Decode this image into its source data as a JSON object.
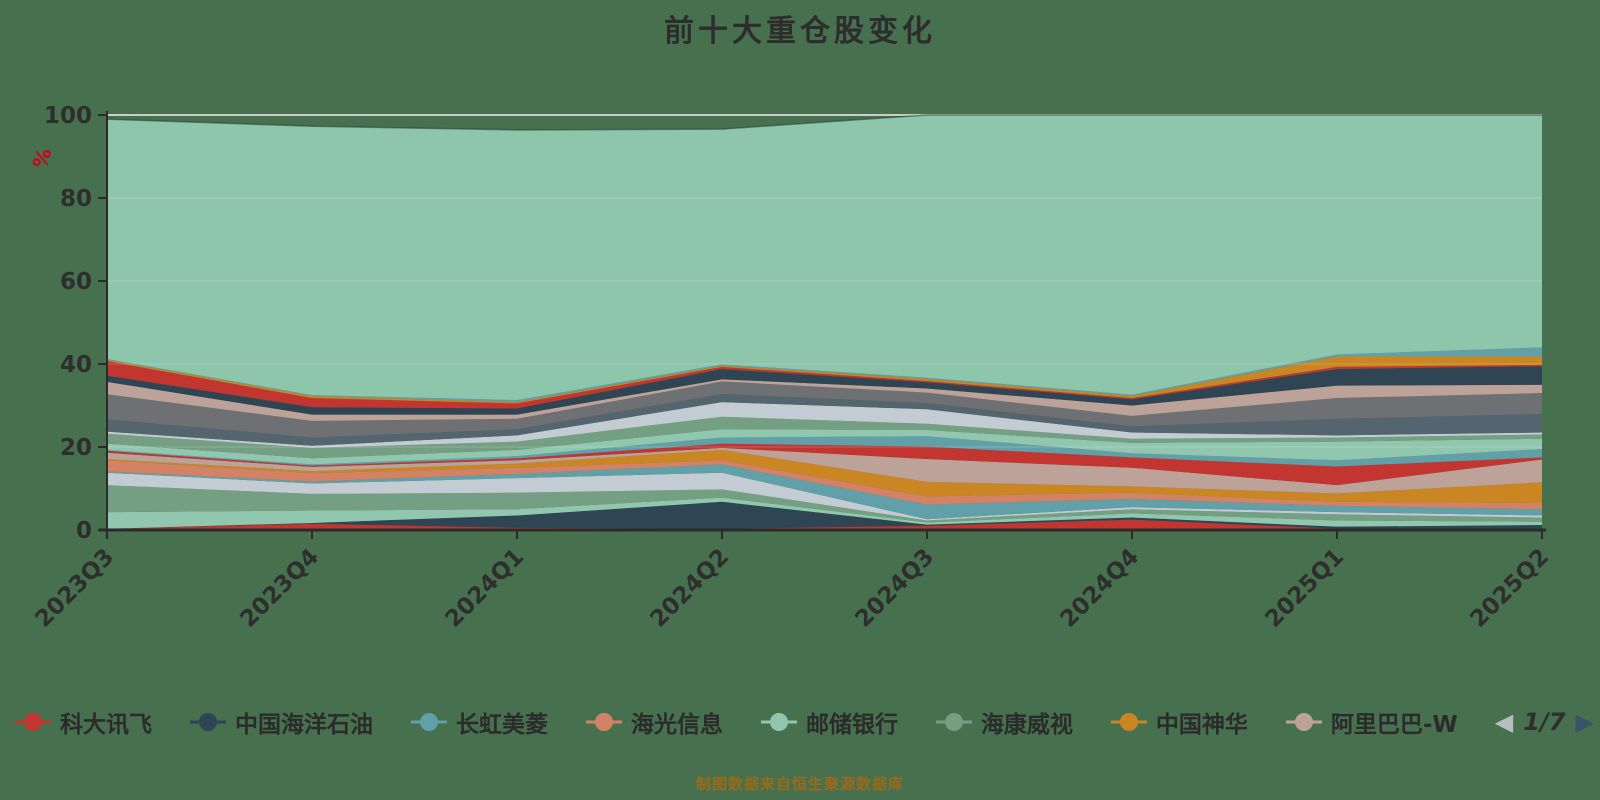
{
  "title": "前十大重仓股变化",
  "caption": "制图数据来自恒生聚源数据库",
  "y_axis": {
    "unit": "%",
    "labels": [
      0,
      20,
      40,
      60,
      80,
      100
    ]
  },
  "legend": {
    "pager": {
      "text": "1/7",
      "prev_icon": "left-triangle",
      "next_icon": "right-triangle"
    },
    "items": [
      {
        "label": "科大讯飞",
        "color": "#c23531"
      },
      {
        "label": "中国海洋石油",
        "color": "#2f4554"
      },
      {
        "label": "长虹美菱",
        "color": "#61a0a8"
      },
      {
        "label": "海光信息",
        "color": "#d48265"
      },
      {
        "label": "邮储银行",
        "color": "#91c7ae"
      },
      {
        "label": "海康威视",
        "color": "#749f83"
      },
      {
        "label": "中国神华",
        "color": "#ca8622"
      },
      {
        "label": "阿里巴巴-W",
        "color": "#bda29a"
      }
    ]
  },
  "colors": {
    "background": "#47704F",
    "axis": "#2b2b2b",
    "axis_label": "#2e2e2e",
    "gridline_100": "#c9cdc9",
    "unit_label": "#d0021b",
    "caption": "#9a6a1b",
    "top_area": "#8ec6ac"
  },
  "chart_data": {
    "type": "area",
    "stacked": true,
    "title": "前十大重仓股变化",
    "x": [
      "2023Q3",
      "2023Q4",
      "2024Q1",
      "2024Q2",
      "2024Q3",
      "2024Q4",
      "2025Q1",
      "2025Q2"
    ],
    "ylim": [
      0,
      100
    ],
    "ylabel": "%",
    "grid": "horizontal-line-at-100-plus-faint-20-40-60-80",
    "legend_position": "bottom",
    "series": [
      {
        "name": "科大讯飞",
        "color": "#c23531",
        "values": [
          0.3,
          1.5,
          0.5,
          0.3,
          1.0,
          2.5,
          0.3,
          0.2
        ]
      },
      {
        "name": "中国海洋石油",
        "color": "#2f4554",
        "values": [
          0.0,
          0.2,
          3.0,
          6.5,
          0.3,
          0.5,
          0.5,
          1.0
        ]
      },
      {
        "name": "邮储银行",
        "color": "#91c7ae",
        "values": [
          4.0,
          3.0,
          1.5,
          1.0,
          0.5,
          1.0,
          1.5,
          0.8
        ]
      },
      {
        "name": "海康威视",
        "color": "#749f83",
        "values": [
          6.5,
          4.0,
          4.0,
          2.0,
          0.5,
          1.0,
          1.5,
          1.0
        ]
      },
      {
        "name": "",
        "color": "#c4ccd3",
        "values": [
          3.0,
          2.5,
          3.5,
          4.0,
          0.3,
          0.5,
          0.5,
          0.5
        ]
      },
      {
        "name": "长虹美菱",
        "color": "#61a0a8",
        "values": [
          0.3,
          0.5,
          1.0,
          2.0,
          3.5,
          2.0,
          1.5,
          1.5
        ]
      },
      {
        "name": "海光信息",
        "color": "#d48265",
        "values": [
          2.7,
          2.0,
          1.5,
          1.0,
          2.0,
          1.5,
          1.0,
          1.5
        ]
      },
      {
        "name": "中国神华",
        "color": "#ca8622",
        "values": [
          0.3,
          0.5,
          1.0,
          2.5,
          3.5,
          1.5,
          2.0,
          5.0
        ]
      },
      {
        "name": "阿里巴巴-W",
        "color": "#bda29a",
        "values": [
          1.5,
          1.0,
          0.8,
          0.5,
          5.5,
          4.5,
          2.0,
          5.5
        ]
      },
      {
        "name": "",
        "color": "#c23531",
        "values": [
          0.5,
          0.3,
          0.5,
          1.0,
          3.0,
          2.5,
          4.5,
          0.5
        ]
      },
      {
        "name": "",
        "color": "#61a0a8",
        "values": [
          0.2,
          0.3,
          0.5,
          1.5,
          2.5,
          1.0,
          1.5,
          2.0
        ]
      },
      {
        "name": "",
        "color": "#91c7ae",
        "values": [
          1.5,
          1.5,
          1.5,
          2.0,
          1.5,
          2.5,
          4.5,
          2.5
        ]
      },
      {
        "name": "",
        "color": "#749f83",
        "values": [
          2.4,
          2.5,
          2.0,
          3.0,
          1.5,
          1.0,
          1.0,
          1.0
        ]
      },
      {
        "name": "",
        "color": "#c4ccd3",
        "values": [
          0.5,
          0.5,
          1.5,
          3.5,
          3.5,
          1.5,
          0.5,
          0.5
        ]
      },
      {
        "name": "",
        "color": "#546570",
        "values": [
          3.0,
          2.0,
          1.5,
          2.0,
          1.5,
          1.5,
          4.0,
          4.5
        ]
      },
      {
        "name": "",
        "color": "#6e7074",
        "values": [
          6.0,
          4.0,
          2.5,
          3.0,
          2.5,
          2.5,
          5.0,
          5.0
        ]
      },
      {
        "name": "",
        "color": "#bda29a",
        "values": [
          3.0,
          1.5,
          1.0,
          0.5,
          1.0,
          2.5,
          3.0,
          2.0
        ]
      },
      {
        "name": "",
        "color": "#2f4554",
        "values": [
          1.5,
          1.8,
          1.5,
          2.5,
          1.5,
          1.5,
          4.0,
          4.5
        ]
      },
      {
        "name": "",
        "color": "#c23531",
        "values": [
          3.5,
          2.2,
          1.2,
          0.5,
          0.3,
          0.3,
          0.5,
          0.3
        ]
      },
      {
        "name": "",
        "color": "#ca8622",
        "values": [
          0.3,
          0.5,
          0.3,
          0.3,
          0.5,
          0.5,
          2.5,
          2.0
        ]
      },
      {
        "name": "",
        "color": "#61a0a8",
        "values": [
          0.2,
          0.2,
          0.5,
          0.3,
          0.3,
          0.3,
          0.5,
          2.2
        ]
      },
      {
        "name": "",
        "color": "#8ec6ac",
        "values": [
          57.8,
          64.8,
          65.1,
          56.7,
          63.3,
          67.4,
          57.7,
          56.0
        ]
      }
    ]
  }
}
